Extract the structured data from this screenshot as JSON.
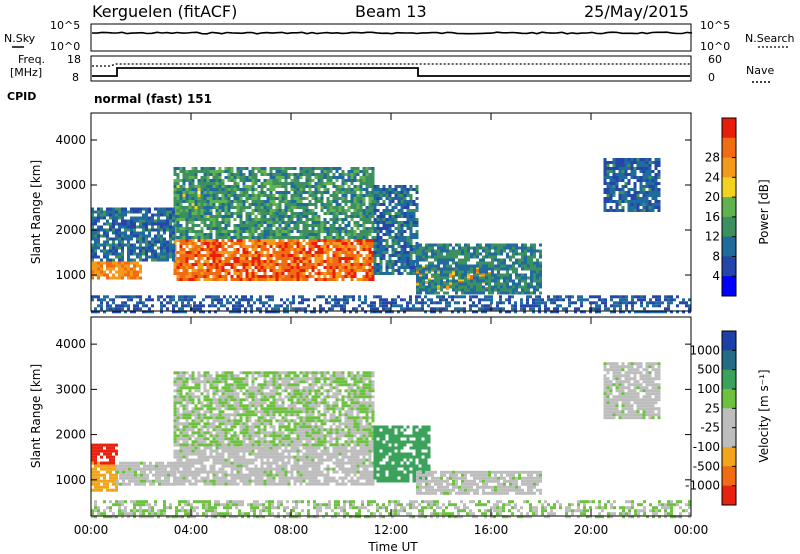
{
  "header": {
    "station": "Kerguelen (fitACF)",
    "beam": "Beam 13",
    "date": "25/May/2015"
  },
  "top_panels": {
    "nsky_label": "N.Sky",
    "nsearch_label": "N.Search",
    "nsky_ticks": [
      "10^5",
      "10^0"
    ],
    "nsearch_ticks": [
      "10^5",
      "10^0"
    ],
    "freq_label_1": "Freq.",
    "freq_label_2": "[MHz]",
    "freq_ticks": [
      "18",
      "8"
    ],
    "nave_label": "Nave",
    "nave_ticks": [
      "60",
      "0"
    ],
    "cpid_label": "CPID",
    "cpid_text": "normal (fast) 151"
  },
  "colors": {
    "power_scale": [
      "#0000ff",
      "#2346a8",
      "#1f6b9e",
      "#3c8f5e",
      "#5fb24f",
      "#f2d21f",
      "#f39a1a",
      "#f06b12",
      "#e81e0a"
    ],
    "velocity_scale": [
      "#1c3fa8",
      "#246b86",
      "#3aa25a",
      "#6cc23f",
      "#bdbdbd",
      "#bdbdbd",
      "#f2a51a",
      "#f06b12",
      "#e8220f"
    ]
  },
  "chart_data": [
    {
      "type": "heatmap",
      "title": "Power",
      "ylabel": "Slant Range [km]",
      "yticks": [
        "1000",
        "2000",
        "3000",
        "4000"
      ],
      "ylim": [
        200,
        4600
      ],
      "colorbar_label": "Power [dB]",
      "colorbar_ticks": [
        "4",
        "8",
        "12",
        "16",
        "20",
        "24",
        "28"
      ],
      "regions": [
        {
          "t0": 0.0,
          "t1": 2.0,
          "r0": 900,
          "r1": 1300,
          "value": 28
        },
        {
          "t0": 3.3,
          "t1": 11.3,
          "r0": 900,
          "r1": 1800,
          "value": 30
        },
        {
          "t0": 3.3,
          "t1": 4.7,
          "r0": 2300,
          "r1": 3000,
          "value": 20
        },
        {
          "t0": 3.3,
          "t1": 11.3,
          "r0": 1800,
          "r1": 3400,
          "value": 14
        },
        {
          "t0": 0.0,
          "t1": 3.3,
          "r0": 1300,
          "r1": 2500,
          "value": 10
        },
        {
          "t0": 11.3,
          "t1": 13.0,
          "r0": 1000,
          "r1": 3000,
          "value": 10
        },
        {
          "t0": 13.0,
          "t1": 16.0,
          "r0": 700,
          "r1": 1200,
          "value": 26
        },
        {
          "t0": 13.0,
          "t1": 18.0,
          "r0": 600,
          "r1": 1700,
          "value": 12
        },
        {
          "t0": 20.5,
          "t1": 22.7,
          "r0": 2400,
          "r1": 3600,
          "value": 9
        },
        {
          "t0": 0.0,
          "t1": 24.0,
          "r0": 200,
          "r1": 550,
          "value": 8
        }
      ]
    },
    {
      "type": "heatmap",
      "title": "Velocity",
      "xlabel": "Time UT",
      "ylabel": "Slant Range [km]",
      "xticks": [
        "00:00",
        "04:00",
        "08:00",
        "12:00",
        "16:00",
        "20:00",
        "00:00"
      ],
      "yticks": [
        "1000",
        "2000",
        "3000",
        "4000"
      ],
      "ylim": [
        200,
        4600
      ],
      "colorbar_label": "Velocity [m s⁻¹]",
      "colorbar_ticks": [
        "1000",
        "500",
        "100",
        "25",
        "-25",
        "-100",
        "-500",
        "-1000"
      ],
      "regions": [
        {
          "t0": 0.0,
          "t1": 1.0,
          "r0": 800,
          "r1": 1400,
          "value": -100
        },
        {
          "t0": 0.0,
          "t1": 1.0,
          "r0": 1400,
          "r1": 1800,
          "value": -1000
        },
        {
          "t0": 1.0,
          "t1": 3.3,
          "r0": 900,
          "r1": 1400,
          "value": 0
        },
        {
          "t0": 3.3,
          "t1": 11.3,
          "r0": 900,
          "r1": 1800,
          "value": 0
        },
        {
          "t0": 3.3,
          "t1": 11.3,
          "r0": 1800,
          "r1": 3400,
          "value": 25
        },
        {
          "t0": 11.3,
          "t1": 13.5,
          "r0": 1000,
          "r1": 2200,
          "value": 100
        },
        {
          "t0": 13.0,
          "t1": 18.0,
          "r0": 700,
          "r1": 1200,
          "value": 0
        },
        {
          "t0": 20.5,
          "t1": 22.7,
          "r0": 2400,
          "r1": 3600,
          "value": 0
        },
        {
          "t0": 0.0,
          "t1": 24.0,
          "r0": 200,
          "r1": 550,
          "value": 25
        }
      ]
    }
  ]
}
